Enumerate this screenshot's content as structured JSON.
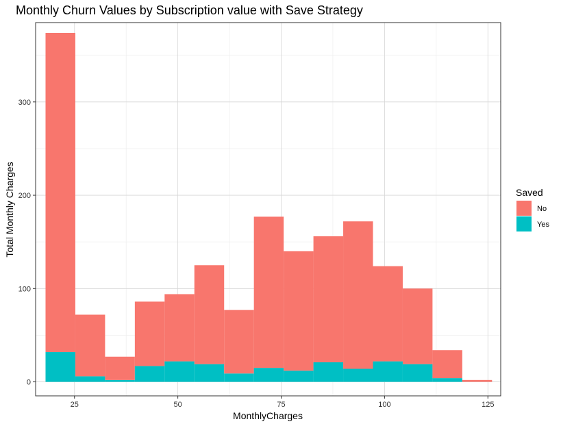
{
  "chart_data": {
    "type": "bar",
    "stacked": true,
    "title": "Monthly Churn Values by Subscription value with Save Strategy",
    "xlabel": "MonthlyCharges",
    "ylabel": "Total Monthly Charges",
    "xlim": [
      15.6,
      128.1
    ],
    "ylim": [
      -15,
      385
    ],
    "x_ticks": [
      25,
      50,
      75,
      100,
      125
    ],
    "y_ticks": [
      0,
      100,
      200,
      300
    ],
    "grid": true,
    "legend": {
      "title": "Saved",
      "position": "right"
    },
    "bins": [
      [
        18,
        25.2
      ],
      [
        25.2,
        32.4
      ],
      [
        32.4,
        39.6
      ],
      [
        39.6,
        46.8
      ],
      [
        46.8,
        54.0
      ],
      [
        54.0,
        61.2
      ],
      [
        61.2,
        68.4
      ],
      [
        68.4,
        75.6
      ],
      [
        75.6,
        82.8
      ],
      [
        82.8,
        90.0
      ],
      [
        90.0,
        97.2
      ],
      [
        97.2,
        104.4
      ],
      [
        104.4,
        111.6
      ],
      [
        111.6,
        118.8
      ],
      [
        118.8,
        126.0
      ]
    ],
    "series": [
      {
        "name": "No",
        "color": "#F8766D",
        "values": [
          342,
          66,
          25,
          69,
          72,
          106,
          68,
          162,
          128,
          135,
          158,
          102,
          81,
          30,
          2
        ]
      },
      {
        "name": "Yes",
        "color": "#00BFC4",
        "values": [
          32,
          6,
          2,
          17,
          22,
          19,
          9,
          15,
          12,
          21,
          14,
          22,
          19,
          4,
          0
        ]
      }
    ]
  }
}
